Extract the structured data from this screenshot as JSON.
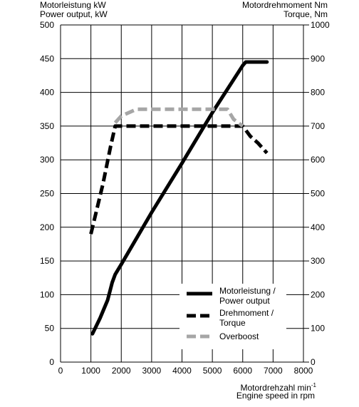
{
  "labels": {
    "left_axis_line1": "Motorleistung kW",
    "left_axis_line2": "Power output, kW",
    "right_axis_line1": "Motordrehmoment Nm",
    "right_axis_line2": "Torque, Nm",
    "x_axis_line1": "Motordrehzahl min",
    "x_axis_sup": "-1",
    "x_axis_line2": "Engine speed in rpm"
  },
  "chart_data": {
    "type": "line",
    "x": {
      "label": "Motordrehzahl min-1 / Engine speed in rpm",
      "range": [
        0,
        8000
      ],
      "ticks": [
        0,
        1000,
        2000,
        3000,
        4000,
        5000,
        6000,
        7000,
        8000
      ]
    },
    "y_left": {
      "label": "Motorleistung kW / Power output, kW",
      "range": [
        0,
        500
      ],
      "ticks": [
        0,
        50,
        100,
        150,
        200,
        250,
        300,
        350,
        400,
        450,
        500
      ]
    },
    "y_right": {
      "label": "Motordrehmoment Nm / Torque, Nm",
      "range": [
        0,
        1000
      ],
      "ticks": [
        0,
        100,
        200,
        300,
        400,
        500,
        600,
        700,
        800,
        900,
        1000
      ]
    },
    "grid": true,
    "legend": {
      "placement": "bottom-right"
    },
    "series": [
      {
        "name_lines": [
          "Motorleistung /",
          "Power output"
        ],
        "axis": "left",
        "style": "solid",
        "color": "#000000",
        "points": [
          [
            1050,
            42
          ],
          [
            1300,
            65
          ],
          [
            1550,
            92
          ],
          [
            1700,
            118
          ],
          [
            1800,
            130
          ],
          [
            2000,
            145
          ],
          [
            3000,
            222
          ],
          [
            4000,
            295
          ],
          [
            5000,
            370
          ],
          [
            6000,
            440
          ],
          [
            6100,
            445
          ],
          [
            6800,
            445
          ]
        ]
      },
      {
        "name_lines": [
          "Drehmoment /",
          "Torque"
        ],
        "axis": "right",
        "style": "dashed",
        "color": "#000000",
        "points": [
          [
            1000,
            380
          ],
          [
            1400,
            530
          ],
          [
            1650,
            640
          ],
          [
            1800,
            700
          ],
          [
            6000,
            700
          ],
          [
            6250,
            670
          ],
          [
            6500,
            650
          ],
          [
            6800,
            620
          ]
        ]
      },
      {
        "name_lines": [
          "Overboost"
        ],
        "axis": "right",
        "style": "dashed",
        "color": "#a6a6a6",
        "points": [
          [
            1800,
            710
          ],
          [
            2000,
            730
          ],
          [
            2500,
            750
          ],
          [
            5500,
            750
          ],
          [
            5700,
            720
          ],
          [
            6000,
            700
          ]
        ]
      }
    ]
  }
}
